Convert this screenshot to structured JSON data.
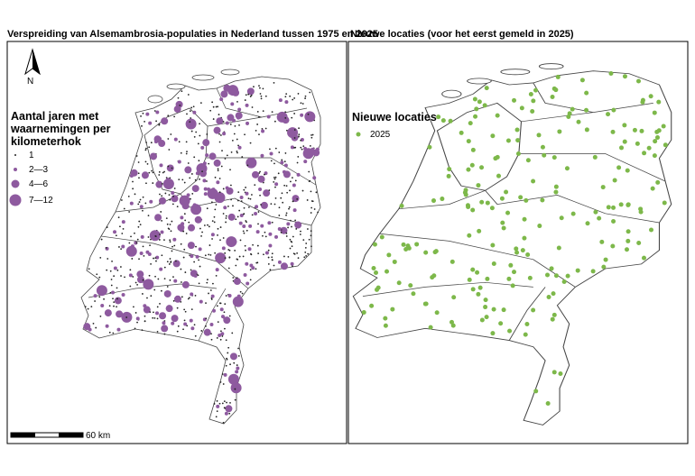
{
  "left_panel": {
    "title": "Verspreiding van Alsemambrosia-populaties in Nederland tussen 1975 en 2025",
    "north": "N",
    "legend": {
      "title": [
        "Aantal jaren met",
        "waarnemingen per",
        "kilometerhok"
      ],
      "items": [
        "1",
        "2—3",
        "4—6",
        "7—12"
      ]
    },
    "scale_label": "60 km"
  },
  "right_panel": {
    "title": "Nieuwe locaties (voor het eerst gemeld in 2025)",
    "legend": {
      "title": "Nieuwe locaties",
      "items": [
        "2025"
      ]
    }
  }
}
